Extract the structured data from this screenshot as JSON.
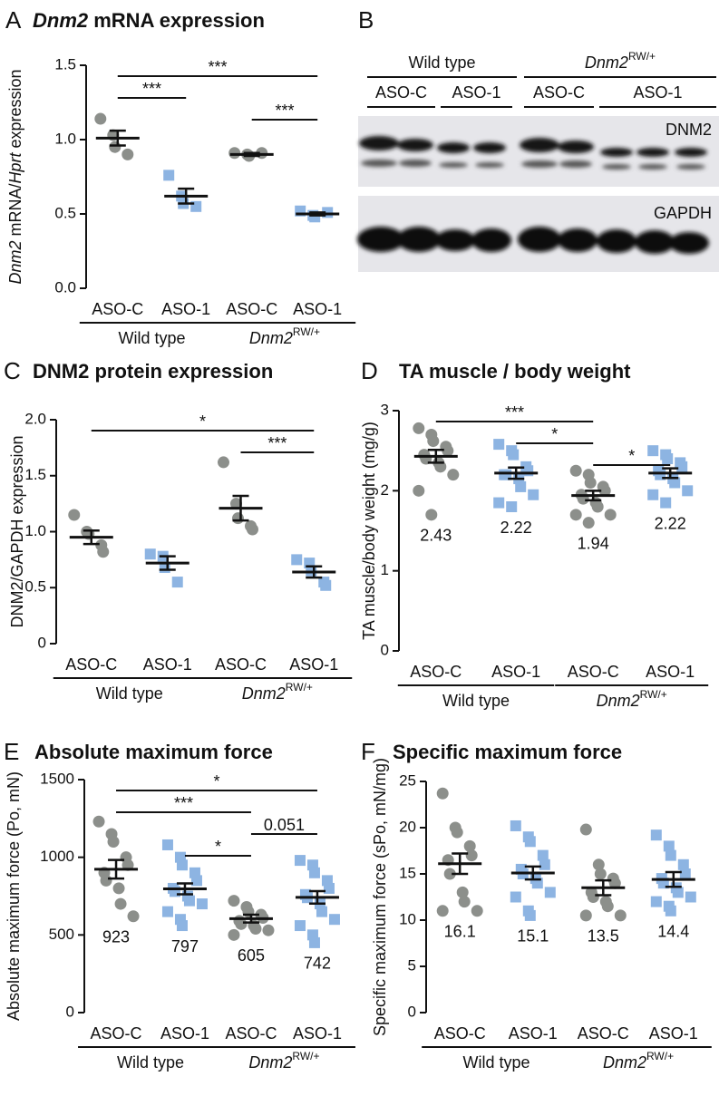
{
  "chart_data": [
    {
      "type": "dotplot",
      "label": "A",
      "title": [
        {
          "text": "Dnm2",
          "style": "italic"
        },
        {
          "text": " mRNA expression"
        }
      ],
      "ylabel": [
        {
          "text": "Dnm2",
          "style": "italic"
        },
        {
          "text": " mRNA/"
        },
        {
          "text": "Hprt",
          "style": "italic"
        },
        {
          "text": " expression"
        }
      ],
      "categories": [
        "ASO-C",
        "ASO-1",
        "ASO-C",
        "ASO-1"
      ],
      "groups": [
        "Wild type",
        [
          {
            "text": "Dnm2",
            "style": "italic"
          },
          {
            "text": "RW/+",
            "style": "sup"
          }
        ]
      ],
      "colors": [
        "#8c8f8b",
        "#8db4e2",
        "#8c8f8b",
        "#8db4e2"
      ],
      "markers": [
        "circle",
        "square",
        "circle",
        "square"
      ],
      "points": [
        [
          1.14,
          1.03,
          0.95,
          0.9
        ],
        [
          0.76,
          0.62,
          0.57,
          0.55
        ],
        [
          0.91,
          0.9,
          0.89,
          0.91
        ],
        [
          0.52,
          0.49,
          0.48,
          0.51
        ]
      ],
      "means": [
        1.01,
        0.62,
        0.9,
        0.5
      ],
      "sems": [
        0.05,
        0.05,
        0.01,
        0.01
      ],
      "mean_labels": false,
      "ylim": [
        0,
        1.5
      ],
      "yticks": [
        {
          "value": 0,
          "label": "0.0"
        },
        {
          "value": 0.5,
          "label": "0.5"
        },
        {
          "value": 1,
          "label": "1.0"
        },
        {
          "value": 1.5,
          "label": "1.5"
        }
      ],
      "brackets": [
        {
          "from": 0,
          "to": 3,
          "label": "***"
        },
        {
          "from": 0,
          "to": 1,
          "label": "***"
        },
        {
          "from": 2,
          "to": 3,
          "label": "***"
        }
      ]
    },
    {
      "type": "blot",
      "label": "B",
      "groups": [
        "Wild type",
        [
          {
            "text": "Dnm2",
            "style": "italic"
          },
          {
            "text": "RW/+",
            "style": "sup"
          }
        ]
      ],
      "lanes": [
        "ASO-C",
        "ASO-1",
        "ASO-C",
        "ASO-1"
      ],
      "bands": [
        "DNM2",
        "GAPDH"
      ]
    },
    {
      "type": "dotplot",
      "label": "C",
      "title": [
        {
          "text": "DNM2 protein expression"
        }
      ],
      "ylabel": [
        {
          "text": "DNM2/GAPDH expression"
        }
      ],
      "categories": [
        "ASO-C",
        "ASO-1",
        "ASO-C",
        "ASO-1"
      ],
      "groups": [
        "Wild type",
        [
          {
            "text": "Dnm2",
            "style": "italic"
          },
          {
            "text": "RW/+",
            "style": "sup"
          }
        ]
      ],
      "colors": [
        "#8c8f8b",
        "#8db4e2",
        "#8c8f8b",
        "#8db4e2"
      ],
      "markers": [
        "circle",
        "square",
        "circle",
        "square"
      ],
      "points": [
        [
          1.15,
          1.0,
          0.98,
          0.88,
          0.82
        ],
        [
          0.8,
          0.78,
          0.68,
          0.55
        ],
        [
          1.62,
          1.25,
          1.12,
          1.05,
          1.02
        ],
        [
          0.75,
          0.72,
          0.65,
          0.55,
          0.52
        ]
      ],
      "means": [
        0.95,
        0.72,
        1.21,
        0.64
      ],
      "sems": [
        0.06,
        0.06,
        0.11,
        0.05
      ],
      "mean_labels": false,
      "ylim": [
        0,
        2
      ],
      "yticks": [
        0,
        {
          "value": 0.5,
          "label": "0.5"
        },
        {
          "value": 1,
          "label": "1.0"
        },
        {
          "value": 1.5,
          "label": "1.5"
        },
        {
          "value": 2,
          "label": "2.0"
        }
      ],
      "brackets": [
        {
          "from": 0,
          "to": 3,
          "label": "*"
        },
        {
          "from": 2,
          "to": 3,
          "label": "***"
        }
      ]
    },
    {
      "type": "dotplot",
      "label": "D",
      "title": [
        {
          "text": "TA muscle / body weight"
        }
      ],
      "ylabel": [
        {
          "text": "TA muscle/body weight (mg/g)"
        }
      ],
      "categories": [
        "ASO-C",
        "ASO-1",
        "ASO-C",
        "ASO-1"
      ],
      "groups": [
        "Wild type",
        [
          {
            "text": "Dnm2",
            "style": "italic"
          },
          {
            "text": "RW/+",
            "style": "sup"
          }
        ]
      ],
      "colors": [
        "#8c8f8b",
        "#8db4e2",
        "#8c8f8b",
        "#8db4e2"
      ],
      "markers": [
        "circle",
        "square",
        "circle",
        "square"
      ],
      "points": [
        [
          2.78,
          2.7,
          2.62,
          2.55,
          2.5,
          2.45,
          2.4,
          2.35,
          2.3,
          2.2,
          2.0,
          1.7
        ],
        [
          2.58,
          2.5,
          2.45,
          2.3,
          2.25,
          2.2,
          2.2,
          2.15,
          2.05,
          1.95,
          1.85,
          1.8
        ],
        [
          2.25,
          2.2,
          2.1,
          2.05,
          2.0,
          1.95,
          1.9,
          1.85,
          1.8,
          1.7,
          1.7,
          1.6
        ],
        [
          2.5,
          2.45,
          2.4,
          2.35,
          2.3,
          2.25,
          2.2,
          2.15,
          2.1,
          2.0,
          1.95,
          1.85
        ]
      ],
      "means": [
        2.43,
        2.22,
        1.94,
        2.22
      ],
      "sems": [
        0.08,
        0.07,
        0.06,
        0.06
      ],
      "mean_labels": true,
      "ylim": [
        0,
        3
      ],
      "yticks": [
        0,
        1,
        2,
        3
      ],
      "brackets": [
        {
          "from": 0,
          "to": 2,
          "label": "***"
        },
        {
          "from": 1,
          "to": 2,
          "label": "*"
        },
        {
          "from": 2,
          "to": 3,
          "label": "*"
        }
      ]
    },
    {
      "type": "dotplot",
      "label": "E",
      "title": [
        {
          "text": "Absolute maximum force"
        }
      ],
      "ylabel": [
        {
          "text": "Absolute maximum force (Po, mN)"
        }
      ],
      "categories": [
        "ASO-C",
        "ASO-1",
        "ASO-C",
        "ASO-1"
      ],
      "groups": [
        "Wild type",
        [
          {
            "text": "Dnm2",
            "style": "italic"
          },
          {
            "text": "RW/+",
            "style": "sup"
          }
        ]
      ],
      "colors": [
        "#8c8f8b",
        "#8db4e2",
        "#8c8f8b",
        "#8db4e2"
      ],
      "markers": [
        "circle",
        "square",
        "circle",
        "square"
      ],
      "points": [
        [
          1230,
          1150,
          1100,
          1000,
          950,
          900,
          850,
          800,
          700,
          620
        ],
        [
          1080,
          1000,
          950,
          900,
          850,
          800,
          780,
          750,
          720,
          700,
          650,
          600,
          560
        ],
        [
          720,
          680,
          650,
          630,
          610,
          590,
          570,
          560,
          540,
          530,
          500
        ],
        [
          980,
          950,
          900,
          850,
          800,
          760,
          740,
          700,
          650,
          600,
          560,
          500,
          450
        ]
      ],
      "means": [
        923,
        797,
        605,
        742
      ],
      "sems": [
        60,
        35,
        25,
        40
      ],
      "mean_labels": true,
      "ylim": [
        0,
        1500
      ],
      "yticks": [
        0,
        500,
        1000,
        1500
      ],
      "brackets": [
        {
          "from": 0,
          "to": 3,
          "label": "*"
        },
        {
          "from": 0,
          "to": 2,
          "label": "***"
        },
        {
          "from": 2,
          "to": 3,
          "label": "0.051"
        },
        {
          "from": 1,
          "to": 2,
          "label": "*"
        }
      ]
    },
    {
      "type": "dotplot",
      "label": "F",
      "title": [
        {
          "text": "Specific maximum force"
        }
      ],
      "ylabel": [
        {
          "text": "Specific maximum force (sPo, mN/mg)"
        }
      ],
      "categories": [
        "ASO-C",
        "ASO-1",
        "ASO-C",
        "ASO-1"
      ],
      "groups": [
        "Wild type",
        [
          {
            "text": "Dnm2",
            "style": "italic"
          },
          {
            "text": "RW/+",
            "style": "sup"
          }
        ]
      ],
      "colors": [
        "#8c8f8b",
        "#8db4e2",
        "#8c8f8b",
        "#8db4e2"
      ],
      "markers": [
        "circle",
        "square",
        "circle",
        "square"
      ],
      "points": [
        [
          23.7,
          20,
          19.5,
          18,
          17,
          16.5,
          15,
          13,
          12,
          11,
          11
        ],
        [
          20.2,
          19,
          18.5,
          17,
          16,
          15.5,
          15,
          14.5,
          14,
          13,
          12.5,
          11,
          10.5
        ],
        [
          19.8,
          16,
          15,
          14.5,
          14,
          13,
          12.5,
          12,
          11.5,
          10.5,
          10.5
        ],
        [
          19.2,
          18,
          17,
          16,
          15,
          14.5,
          14,
          13.5,
          13,
          12.5,
          12,
          11.5,
          11
        ]
      ],
      "means": [
        16.1,
        15.1,
        13.5,
        14.4
      ],
      "sems": [
        1.1,
        0.7,
        0.8,
        0.8
      ],
      "mean_labels": true,
      "ylim": [
        0,
        25
      ],
      "yticks": [
        0,
        5,
        10,
        15,
        20,
        25
      ],
      "brackets": []
    }
  ]
}
